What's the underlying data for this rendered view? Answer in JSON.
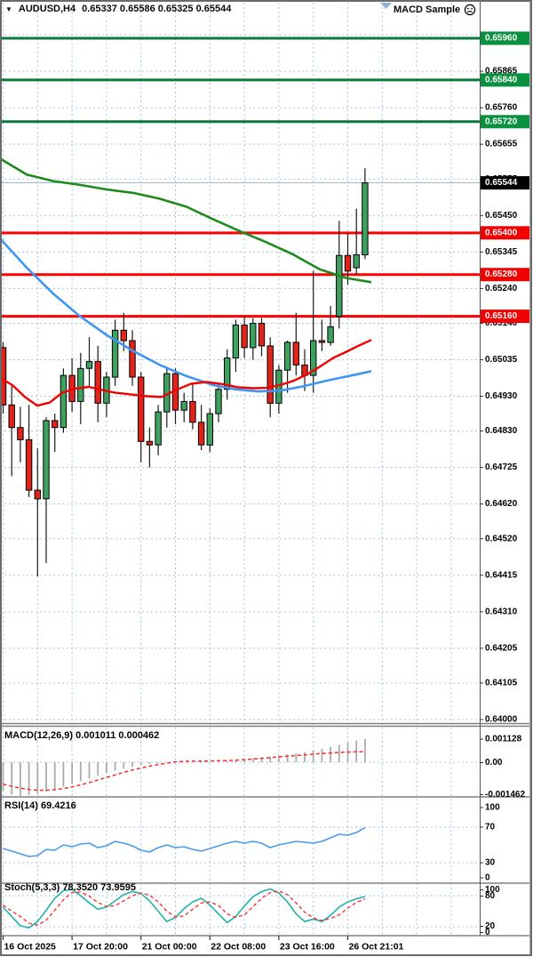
{
  "window": {
    "dropdown_icon": "down-triangle",
    "symbol": "AUDUSD,H4",
    "ohlc_line": "0.65337 0.65586 0.65325 0.65544",
    "ea_name": "MACD Sample",
    "ea_state_icon": "sad-face-in-circle"
  },
  "colors": {
    "bull": "#3EA15E",
    "bear": "#E0241A",
    "wick": "#1a1a1a",
    "ma_slow_green": "#1E8A1E",
    "ma_mid_blue": "#3E96F4",
    "ma_fast_red": "#F40000",
    "level_red": "#FF0000",
    "level_green": "#077a3c",
    "badge_green": "#0A9140",
    "badge_red": "#F20000",
    "badge_black": "#000000",
    "grid": "#A9C5E2",
    "bid_line": "#9FB9D2",
    "macd_hist": "#ABABAB",
    "macd_signal": "#FF2A2A",
    "rsi_line": "#4D9BE6",
    "stoch_k": "#20B2AA",
    "stoch_d": "#FF3030",
    "frame": "#6a6a6a",
    "axis_text": "#000000"
  },
  "chart_data": [
    {
      "type": "candlestick",
      "title": "AUDUSD H4 main chart",
      "price_axis_ticks": [
        {
          "label": "",
          "price": 0.6597
        },
        {
          "label": "0.65865",
          "price": 0.65865
        },
        {
          "label": "0.65760",
          "price": 0.6576
        },
        {
          "label": "0.65655",
          "price": 0.65655
        },
        {
          "label": "0.65555",
          "price": 0.65555
        },
        {
          "label": "0.65450",
          "price": 0.6545
        },
        {
          "label": "0.65345",
          "price": 0.65345
        },
        {
          "label": "0.65240",
          "price": 0.6524
        },
        {
          "label": "0.65140",
          "price": 0.6514
        },
        {
          "label": "0.65035",
          "price": 0.65035
        },
        {
          "label": "0.64930",
          "price": 0.6493
        },
        {
          "label": "0.64830",
          "price": 0.6483
        },
        {
          "label": "0.64725",
          "price": 0.64725
        },
        {
          "label": "0.64620",
          "price": 0.6462
        },
        {
          "label": "0.64520",
          "price": 0.6452
        },
        {
          "label": "0.64415",
          "price": 0.64415
        },
        {
          "label": "0.64310",
          "price": 0.6431
        },
        {
          "label": "0.64205",
          "price": 0.64205
        },
        {
          "label": "0.64105",
          "price": 0.64105
        },
        {
          "label": "0.64000",
          "price": 0.64
        }
      ],
      "time_axis": [
        {
          "label": "16 Oct 2025",
          "grid_index": 0
        },
        {
          "label": "17 Oct 20:00",
          "grid_index": 2
        },
        {
          "label": "21 Oct 00:00",
          "grid_index": 4
        },
        {
          "label": "22 Oct 08:00",
          "grid_index": 6
        },
        {
          "label": "23 Oct 16:00",
          "grid_index": 8
        },
        {
          "label": "26 Oct 21:01",
          "grid_index": 10
        }
      ],
      "candles": [
        [
          0.6507,
          0.65085,
          0.6488,
          0.64905
        ],
        [
          0.64905,
          0.6496,
          0.647,
          0.6484
        ],
        [
          0.6484,
          0.649,
          0.6474,
          0.64805
        ],
        [
          0.64805,
          0.64905,
          0.6464,
          0.6466
        ],
        [
          0.6466,
          0.6478,
          0.64412,
          0.64635
        ],
        [
          0.64635,
          0.6487,
          0.6445,
          0.6486
        ],
        [
          0.6486,
          0.6488,
          0.6477,
          0.6484
        ],
        [
          0.6484,
          0.6501,
          0.64825,
          0.6499
        ],
        [
          0.6499,
          0.6504,
          0.64885,
          0.64915
        ],
        [
          0.64915,
          0.65055,
          0.6485,
          0.6501
        ],
        [
          0.6501,
          0.651,
          0.6496,
          0.6503
        ],
        [
          0.6503,
          0.65075,
          0.64855,
          0.6491
        ],
        [
          0.6491,
          0.65,
          0.6487,
          0.64985
        ],
        [
          0.64985,
          0.6515,
          0.6496,
          0.6512
        ],
        [
          0.6512,
          0.6517,
          0.6506,
          0.6509
        ],
        [
          0.6509,
          0.6512,
          0.6496,
          0.64985
        ],
        [
          0.64985,
          0.65,
          0.6474,
          0.648
        ],
        [
          0.648,
          0.6484,
          0.64725,
          0.6479
        ],
        [
          0.6479,
          0.64905,
          0.6476,
          0.64885
        ],
        [
          0.64885,
          0.65015,
          0.6484,
          0.64995
        ],
        [
          0.64995,
          0.6501,
          0.6485,
          0.6489
        ],
        [
          0.6489,
          0.6494,
          0.64855,
          0.64915
        ],
        [
          0.64915,
          0.64965,
          0.64835,
          0.64855
        ],
        [
          0.64855,
          0.64905,
          0.64775,
          0.6479
        ],
        [
          0.6479,
          0.64895,
          0.6477,
          0.6488
        ],
        [
          0.6488,
          0.64965,
          0.64855,
          0.6495
        ],
        [
          0.6495,
          0.65065,
          0.6492,
          0.6504
        ],
        [
          0.6504,
          0.6515,
          0.65,
          0.65135
        ],
        [
          0.65135,
          0.6516,
          0.6504,
          0.6507
        ],
        [
          0.6507,
          0.65155,
          0.65035,
          0.6514
        ],
        [
          0.6514,
          0.65155,
          0.65045,
          0.65075
        ],
        [
          0.65075,
          0.651,
          0.6487,
          0.6491
        ],
        [
          0.6491,
          0.6502,
          0.6488,
          0.65005
        ],
        [
          0.65005,
          0.6509,
          0.6494,
          0.65085
        ],
        [
          0.65085,
          0.6517,
          0.6499,
          0.6502
        ],
        [
          0.6502,
          0.65065,
          0.64945,
          0.6499
        ],
        [
          0.6499,
          0.6529,
          0.6494,
          0.6509
        ],
        [
          0.6509,
          0.6515,
          0.6506,
          0.65085
        ],
        [
          0.65085,
          0.6519,
          0.65075,
          0.6513
        ],
        [
          0.6516,
          0.65435,
          0.65125,
          0.65335
        ],
        [
          0.65335,
          0.654,
          0.6525,
          0.6529
        ],
        [
          0.653,
          0.6547,
          0.6528,
          0.65337
        ],
        [
          0.65337,
          0.65586,
          0.65325,
          0.65544
        ]
      ],
      "overlays": {
        "ma_slow_green": [
          [
            0,
            0.65614
          ],
          [
            30,
            0.65568
          ],
          [
            60,
            0.65549
          ],
          [
            90,
            0.65538
          ],
          [
            120,
            0.65525
          ],
          [
            150,
            0.65515
          ],
          [
            180,
            0.65498
          ],
          [
            210,
            0.65475
          ],
          [
            240,
            0.65439
          ],
          [
            270,
            0.65405
          ],
          [
            300,
            0.65373
          ],
          [
            330,
            0.65338
          ],
          [
            360,
            0.65295
          ],
          [
            390,
            0.6527
          ],
          [
            418,
            0.65258
          ]
        ],
        "ma_mid_blue": [
          [
            0,
            0.65384
          ],
          [
            30,
            0.653
          ],
          [
            60,
            0.65225
          ],
          [
            90,
            0.6516
          ],
          [
            120,
            0.65106
          ],
          [
            150,
            0.6506
          ],
          [
            180,
            0.6502
          ],
          [
            210,
            0.64988
          ],
          [
            240,
            0.64962
          ],
          [
            265,
            0.6495
          ],
          [
            290,
            0.64944
          ],
          [
            315,
            0.64946
          ],
          [
            340,
            0.64958
          ],
          [
            370,
            0.64976
          ],
          [
            400,
            0.64992
          ],
          [
            418,
            0.65002
          ]
        ],
        "ma_fast_red": [
          [
            0,
            0.64983
          ],
          [
            14,
            0.64962
          ],
          [
            28,
            0.64928
          ],
          [
            42,
            0.64903
          ],
          [
            56,
            0.64912
          ],
          [
            70,
            0.6494
          ],
          [
            85,
            0.64952
          ],
          [
            100,
            0.64957
          ],
          [
            115,
            0.64948
          ],
          [
            130,
            0.6494
          ],
          [
            148,
            0.64935
          ],
          [
            165,
            0.6493
          ],
          [
            182,
            0.64928
          ],
          [
            200,
            0.6495
          ],
          [
            215,
            0.64966
          ],
          [
            232,
            0.64971
          ],
          [
            250,
            0.64965
          ],
          [
            268,
            0.64956
          ],
          [
            285,
            0.64953
          ],
          [
            300,
            0.64954
          ],
          [
            315,
            0.64962
          ],
          [
            330,
            0.64974
          ],
          [
            345,
            0.64992
          ],
          [
            360,
            0.65015
          ],
          [
            375,
            0.6504
          ],
          [
            390,
            0.65058
          ],
          [
            405,
            0.65077
          ],
          [
            418,
            0.65092
          ]
        ]
      },
      "levels": {
        "resistance_green": [
          {
            "price": 0.6596,
            "label": "0.65960"
          },
          {
            "price": 0.6584,
            "label": "0.65840"
          },
          {
            "price": 0.6572,
            "label": "0.65720"
          }
        ],
        "support_red": [
          {
            "price": 0.654,
            "label": "0.65400"
          },
          {
            "price": 0.6528,
            "label": "0.65280"
          },
          {
            "price": 0.6516,
            "label": "0.65160"
          }
        ],
        "current_bid": {
          "price": 0.65544,
          "label": "0.65544"
        }
      }
    },
    {
      "type": "macd",
      "label": "MACD(12,26,9) 0.001011 0.000462",
      "scale_labels": [
        "0.001128",
        "0.00",
        "-0.001462"
      ],
      "hist": [
        -0.00125,
        -0.0014,
        -0.00146,
        -0.00143,
        -0.00136,
        -0.00127,
        -0.00117,
        -0.00106,
        -0.00094,
        -0.00082,
        -0.0007,
        -0.00058,
        -0.00047,
        -0.00037,
        -0.00028,
        -0.0002,
        -0.00013,
        -7e-05,
        -3e-05,
        0.0,
        1e-05,
        0.0,
        -2e-05,
        -3e-05,
        -1e-05,
        2e-05,
        6e-05,
        0.00011,
        0.00015,
        0.00018,
        0.00021,
        0.00024,
        0.00028,
        0.00033,
        0.00038,
        0.00044,
        0.00051,
        0.00058,
        0.00066,
        0.00075,
        0.00085,
        0.00094,
        0.001011
      ],
      "signal": [
        -0.00095,
        -0.00104,
        -0.00112,
        -0.00118,
        -0.00121,
        -0.00121,
        -0.00119,
        -0.00114,
        -0.00107,
        -0.00098,
        -0.00088,
        -0.00077,
        -0.00066,
        -0.00055,
        -0.00044,
        -0.00034,
        -0.00025,
        -0.00017,
        -0.0001,
        -4e-05,
        1e-05,
        4e-05,
        5e-05,
        5e-05,
        5e-05,
        6e-05,
        7e-05,
        9e-05,
        0.00011,
        0.00014,
        0.00017,
        0.0002,
        0.00023,
        0.00026,
        0.00029,
        0.00032,
        0.00035,
        0.00038,
        0.0004,
        0.00042,
        0.00044,
        0.00045,
        0.000462
      ]
    },
    {
      "type": "rsi",
      "label": "RSI(14) 69.4216",
      "scale_labels": [
        "100",
        "70",
        "30",
        "0"
      ],
      "level_lines": [
        70,
        30
      ],
      "values": [
        46,
        43,
        40,
        37,
        38,
        45,
        44,
        50,
        48,
        51,
        52,
        47,
        49,
        54,
        52,
        49,
        44,
        42,
        47,
        50,
        47,
        48,
        45,
        43,
        46,
        49,
        52,
        54,
        52,
        54,
        52,
        47,
        50,
        52,
        54,
        53,
        52,
        54,
        58,
        62,
        61,
        64,
        69.42
      ]
    },
    {
      "type": "stoch",
      "label": "Stoch(5,3,3) 78.3520 73.9595",
      "scale_labels": [
        "100",
        "80",
        "20",
        "0"
      ],
      "level_lines": [
        80,
        20
      ],
      "k": [
        58,
        40,
        22,
        18,
        30,
        52,
        75,
        90,
        92,
        80,
        66,
        54,
        58,
        70,
        82,
        88,
        84,
        70,
        50,
        30,
        38,
        55,
        68,
        75,
        62,
        45,
        28,
        40,
        60,
        78,
        88,
        93,
        85,
        68,
        45,
        30,
        35,
        30,
        42,
        58,
        68,
        74,
        78.35
      ],
      "d": [
        62,
        50,
        40,
        27,
        23,
        33,
        52,
        72,
        86,
        87,
        79,
        67,
        59,
        61,
        70,
        80,
        85,
        81,
        68,
        50,
        39,
        41,
        54,
        66,
        68,
        61,
        45,
        38,
        43,
        59,
        75,
        86,
        89,
        82,
        66,
        48,
        37,
        32,
        36,
        43,
        56,
        67,
        73.96
      ]
    }
  ]
}
